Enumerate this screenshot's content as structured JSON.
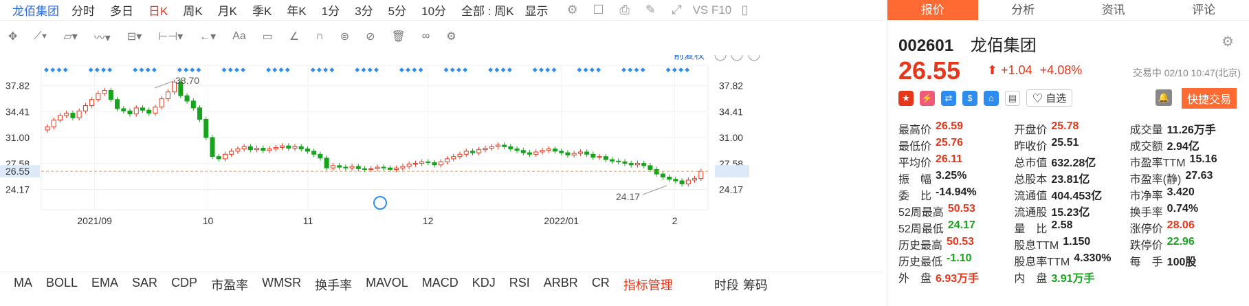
{
  "topbar": {
    "stock_name": "龙佰集团",
    "periods": [
      "分时",
      "多日",
      "日K",
      "周K",
      "月K",
      "季K",
      "年K",
      "1分",
      "3分",
      "5分",
      "10分"
    ],
    "active_period": "日K",
    "full_select": "全部 : 周K",
    "display_label": "显示",
    "vs_label": "VS F10"
  },
  "chart_controls": {
    "adjust_label": "前复权"
  },
  "chart_data": {
    "type": "candlestick",
    "y_ticks": [
      "37.82",
      "34.41",
      "31.00",
      "27.58",
      "24.17"
    ],
    "y_ticks_right": [
      "37.82",
      "34.41",
      "31.00",
      "27.58",
      "26.55",
      "24.17"
    ],
    "x_ticks": [
      "2021/09",
      "10",
      "11",
      "12",
      "2022/01",
      "2"
    ],
    "last_price_label": "26.55",
    "high_annotation": "38.70",
    "low_annotation": "24.17",
    "ylim": [
      21.5,
      40.5
    ],
    "closes": [
      32.4,
      33.3,
      33.9,
      34.2,
      33.6,
      34.5,
      35.2,
      36.0,
      36.8,
      37.2,
      36.0,
      34.8,
      34.5,
      34.1,
      34.9,
      34.6,
      34.2,
      35.0,
      36.1,
      37.0,
      38.3,
      36.5,
      35.8,
      34.9,
      33.4,
      31.0,
      28.5,
      28.2,
      28.8,
      29.2,
      29.5,
      29.8,
      29.4,
      29.6,
      29.3,
      29.5,
      29.7,
      29.9,
      29.6,
      29.8,
      29.5,
      29.2,
      28.8,
      28.3,
      27.0,
      27.3,
      27.1,
      27.0,
      27.2,
      26.9,
      26.8,
      26.9,
      27.1,
      27.0,
      26.8,
      27.0,
      27.2,
      27.5,
      27.6,
      27.8,
      27.7,
      27.4,
      27.8,
      28.2,
      28.5,
      28.8,
      29.2,
      29.0,
      29.4,
      29.6,
      29.8,
      30.0,
      29.8,
      29.5,
      29.3,
      29.0,
      28.8,
      29.1,
      29.3,
      29.5,
      29.2,
      29.0,
      28.7,
      28.9,
      29.1,
      28.8,
      28.4,
      28.5,
      28.1,
      27.9,
      27.8,
      27.6,
      27.4,
      27.6,
      27.3,
      26.8,
      26.2,
      25.8,
      25.5,
      25.3,
      24.9,
      25.4,
      25.6,
      26.55
    ],
    "markers_row": "◆"
  },
  "indicators": [
    "MA",
    "BOLL",
    "EMA",
    "SAR",
    "CDP",
    "市盈率",
    "WMSR",
    "换手率",
    "MAVOL",
    "MACD",
    "KDJ",
    "RSI",
    "ARBR",
    "CR"
  ],
  "indicator_mgmt": "指标管理",
  "indicator_right": [
    "时段",
    "筹码"
  ],
  "tabs": [
    "报价",
    "分析",
    "资讯",
    "评论"
  ],
  "active_tab": "报价",
  "quote": {
    "code": "002601",
    "name": "龙佰集团",
    "price": "26.55",
    "change": "+1.04",
    "change_pct": "+4.08%",
    "status": "交易中 02/10 10:47(北京)",
    "watch_label": "自选",
    "quick_trade": "快捷交易"
  },
  "stats": [
    [
      [
        "最高价",
        "26.59",
        "red"
      ],
      [
        "开盘价",
        "25.78",
        "red"
      ],
      [
        "成交量",
        "11.26万手",
        "blk"
      ]
    ],
    [
      [
        "最低价",
        "25.76",
        "red"
      ],
      [
        "昨收价",
        "25.51",
        "blk"
      ],
      [
        "成交额",
        "2.94亿",
        "blk"
      ]
    ],
    [
      [
        "平均价",
        "26.11",
        "red"
      ],
      [
        "总市值",
        "632.28亿",
        "blk"
      ],
      [
        "市盈率TTM",
        "15.16",
        "blk"
      ]
    ],
    [
      [
        "振　幅",
        "3.25%",
        "blk"
      ],
      [
        "总股本",
        "23.81亿",
        "blk"
      ],
      [
        "市盈率(静)",
        "27.63",
        "blk"
      ]
    ],
    [
      [
        "委　比",
        "-14.94%",
        "blk"
      ],
      [
        "流通值",
        "404.453亿",
        "blk"
      ],
      [
        "市净率",
        "3.420",
        "blk"
      ]
    ],
    [
      [
        "52周最高",
        "50.53",
        "red"
      ],
      [
        "流通股",
        "15.23亿",
        "blk"
      ],
      [
        "换手率",
        "0.74%",
        "blk"
      ]
    ],
    [
      [
        "52周最低",
        "24.17",
        "green"
      ],
      [
        "量　比",
        "2.58",
        "blk"
      ],
      [
        "涨停价",
        "28.06",
        "red"
      ]
    ],
    [
      [
        "历史最高",
        "50.53",
        "red"
      ],
      [
        "股息TTM",
        "1.150",
        "blk"
      ],
      [
        "跌停价",
        "22.96",
        "green"
      ]
    ],
    [
      [
        "历史最低",
        "-1.10",
        "green"
      ],
      [
        "股息率TTM",
        "4.330%",
        "blk"
      ],
      [
        "每　手",
        "100股",
        "blk"
      ]
    ],
    [
      [
        "外　盘",
        "6.93万手",
        "red"
      ],
      [
        "内　盘",
        "3.91万手",
        "green"
      ],
      [
        "",
        "",
        "blk"
      ]
    ]
  ]
}
